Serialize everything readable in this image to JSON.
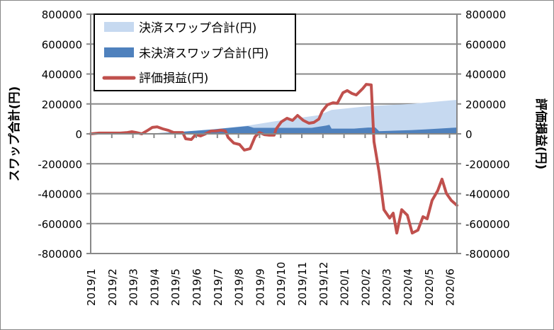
{
  "chart_data": {
    "type": "area+line",
    "x_tick_labels": [
      "2019/1",
      "2019/2",
      "2019/3",
      "2019/4",
      "2019/5",
      "2019/6",
      "2019/7",
      "2019/8",
      "2019/9",
      "2019/10",
      "2019/11",
      "2019/12",
      "2020/1",
      "2020/2",
      "2020/3",
      "2020/4",
      "2020/5",
      "2020/6"
    ],
    "x_unit": "month index (0 = 2019/1)",
    "xlim": [
      0,
      17.35
    ],
    "ylabel_left": "スワップ合計(円)",
    "ylabel_right": "評価損益(円)",
    "ylim": [
      -800000,
      800000
    ],
    "y_ticks": [
      800000,
      600000,
      400000,
      200000,
      0,
      -200000,
      -400000,
      -600000,
      -800000
    ],
    "y_tick_labels": [
      "800000",
      "600000",
      "400000",
      "200000",
      "0",
      "-200000",
      "-400000",
      "-600000",
      "-800000"
    ],
    "grid": true,
    "legend_placement": "top-left",
    "series": [
      {
        "name": "決済スワップ合計(円)",
        "kind": "area",
        "color": "#c6d9f0",
        "points": [
          [
            0,
            0
          ],
          [
            2.42,
            0
          ],
          [
            4.09,
            12000
          ],
          [
            5.77,
            30000
          ],
          [
            7.45,
            55000
          ],
          [
            8.79,
            85000
          ],
          [
            10.81,
            125000
          ],
          [
            11.41,
            160000
          ],
          [
            13.15,
            185000
          ],
          [
            15.17,
            200000
          ],
          [
            17.35,
            227000
          ]
        ]
      },
      {
        "name": "未決済スワップ合計(円)",
        "kind": "area",
        "color": "#4f81bd",
        "points": [
          [
            0,
            0
          ],
          [
            2.42,
            0
          ],
          [
            3.76,
            8000
          ],
          [
            5.77,
            30000
          ],
          [
            7.45,
            52000
          ],
          [
            7.72,
            40000
          ],
          [
            9.13,
            40000
          ],
          [
            10.47,
            40000
          ],
          [
            11.14,
            55000
          ],
          [
            11.31,
            60000
          ],
          [
            11.41,
            35000
          ],
          [
            12.48,
            35000
          ],
          [
            13.15,
            42000
          ],
          [
            13.49,
            42000
          ],
          [
            13.66,
            18000
          ],
          [
            14.5,
            22000
          ],
          [
            15.17,
            25000
          ],
          [
            15.84,
            30000
          ],
          [
            17.35,
            42000
          ]
        ]
      },
      {
        "name": "評価損益(円)",
        "kind": "line",
        "color": "#c0504d",
        "points": [
          [
            0,
            0
          ],
          [
            0.4,
            5000
          ],
          [
            0.74,
            5000
          ],
          [
            1.07,
            5000
          ],
          [
            1.41,
            5000
          ],
          [
            1.74,
            9000
          ],
          [
            1.95,
            14000
          ],
          [
            2.15,
            9000
          ],
          [
            2.42,
            0
          ],
          [
            2.65,
            19000
          ],
          [
            2.92,
            43000
          ],
          [
            3.15,
            47000
          ],
          [
            3.42,
            33000
          ],
          [
            3.66,
            24000
          ],
          [
            3.93,
            9000
          ],
          [
            4.16,
            9000
          ],
          [
            4.36,
            9000
          ],
          [
            4.5,
            -33000
          ],
          [
            4.77,
            -38000
          ],
          [
            4.97,
            -5000
          ],
          [
            5.2,
            -14000
          ],
          [
            5.44,
            0
          ],
          [
            5.7,
            19000
          ],
          [
            5.94,
            19000
          ],
          [
            6.17,
            24000
          ],
          [
            6.38,
            19000
          ],
          [
            6.51,
            -24000
          ],
          [
            6.78,
            -62000
          ],
          [
            7.05,
            -71000
          ],
          [
            7.28,
            -109000
          ],
          [
            7.55,
            -99000
          ],
          [
            7.79,
            -19000
          ],
          [
            7.99,
            9000
          ],
          [
            8.22,
            -5000
          ],
          [
            8.46,
            -9000
          ],
          [
            8.69,
            -9000
          ],
          [
            8.79,
            33000
          ],
          [
            9.03,
            80000
          ],
          [
            9.3,
            104000
          ],
          [
            9.56,
            90000
          ],
          [
            9.8,
            123000
          ],
          [
            10.07,
            90000
          ],
          [
            10.34,
            71000
          ],
          [
            10.57,
            76000
          ],
          [
            10.81,
            99000
          ],
          [
            10.97,
            151000
          ],
          [
            11.21,
            194000
          ],
          [
            11.48,
            208000
          ],
          [
            11.68,
            204000
          ],
          [
            11.95,
            275000
          ],
          [
            12.15,
            289000
          ],
          [
            12.38,
            270000
          ],
          [
            12.58,
            260000
          ],
          [
            12.89,
            303000
          ],
          [
            13.05,
            331000
          ],
          [
            13.29,
            327000
          ],
          [
            13.42,
            -52000
          ],
          [
            13.66,
            -256000
          ],
          [
            13.89,
            -507000
          ],
          [
            14.16,
            -563000
          ],
          [
            14.33,
            -530000
          ],
          [
            14.5,
            -663000
          ],
          [
            14.73,
            -507000
          ],
          [
            15.0,
            -544000
          ],
          [
            15.23,
            -663000
          ],
          [
            15.5,
            -644000
          ],
          [
            15.74,
            -554000
          ],
          [
            15.94,
            -568000
          ],
          [
            16.17,
            -445000
          ],
          [
            16.44,
            -379000
          ],
          [
            16.64,
            -303000
          ],
          [
            16.85,
            -398000
          ],
          [
            17.08,
            -445000
          ],
          [
            17.35,
            -478000
          ]
        ]
      }
    ]
  }
}
